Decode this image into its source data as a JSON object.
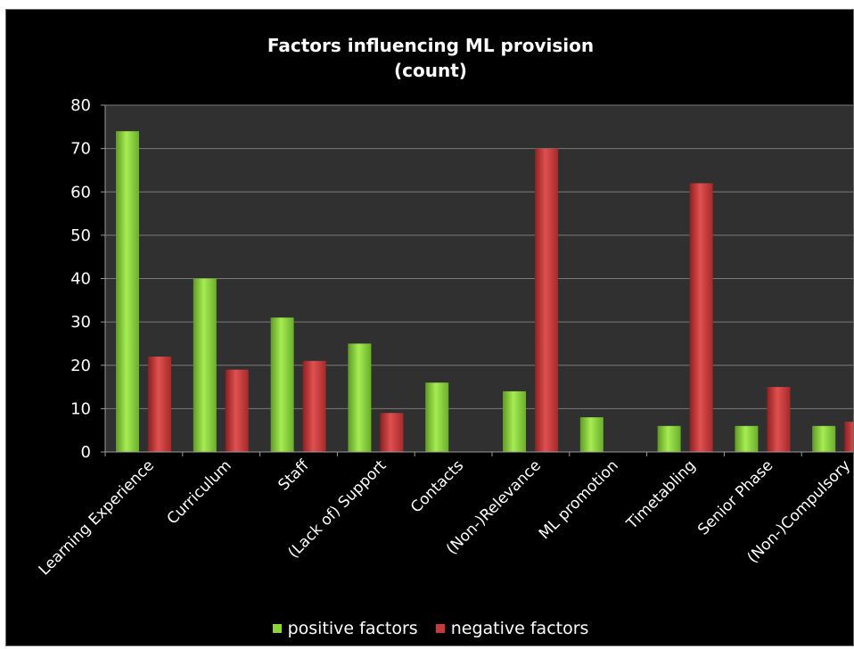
{
  "chart_data": {
    "type": "bar",
    "title": "Factors influencing ML provision",
    "subtitle": "(count)",
    "categories": [
      "Learning Experience",
      "Curriculum",
      "Staff",
      "(Lack of)  Support",
      "Contacts",
      "(Non-)Relevance",
      "ML promotion",
      "Timetabling",
      "Senior Phase",
      "(Non-)Compulsory"
    ],
    "series": [
      {
        "name": "positive factors",
        "values": [
          74,
          40,
          31,
          25,
          16,
          14,
          8,
          6,
          6,
          6
        ],
        "color": "#8cd43a"
      },
      {
        "name": "negative factors",
        "values": [
          22,
          19,
          21,
          9,
          0,
          70,
          0,
          62,
          15,
          7
        ],
        "color": "#c83a3a"
      }
    ],
    "ylim": [
      0,
      80
    ],
    "yticks": [
      "0",
      "10",
      "20",
      "30",
      "40",
      "50",
      "60",
      "70",
      "80"
    ],
    "grid": true,
    "legend_position": "bottom"
  }
}
